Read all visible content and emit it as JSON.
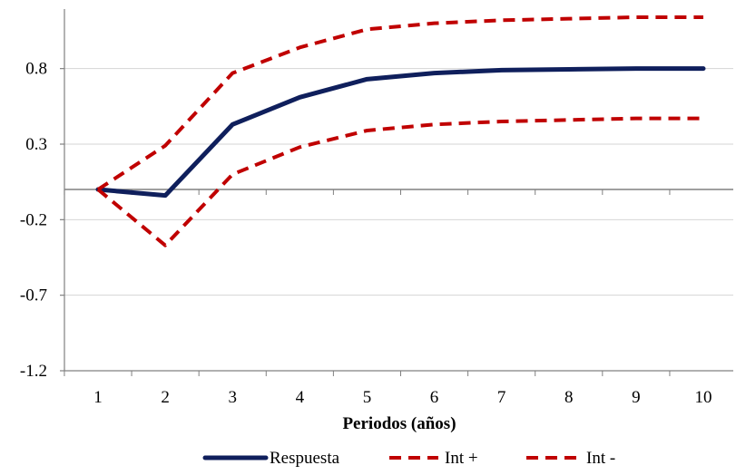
{
  "chart_data": {
    "type": "line",
    "title": "",
    "xlabel": "Periodos (años)",
    "ylabel": "",
    "x": [
      1,
      2,
      3,
      4,
      5,
      6,
      7,
      8,
      9,
      10
    ],
    "x_tick_labels": [
      "1",
      "2",
      "3",
      "4",
      "5",
      "6",
      "7",
      "8",
      "9",
      "10"
    ],
    "ylim": [
      -1.2,
      1.2
    ],
    "y_ticks": [
      0.8,
      0.3,
      -0.2,
      -0.7,
      -1.2
    ],
    "y_tick_labels": [
      "0.8",
      "0.3",
      "-0.2",
      "-0.7",
      "-1.2"
    ],
    "grid": true,
    "legend_position": "bottom",
    "series": [
      {
        "name": "Respuesta",
        "style": "solid",
        "color": "#0f1f5c",
        "values": [
          0.0,
          -0.04,
          0.43,
          0.61,
          0.73,
          0.77,
          0.79,
          0.795,
          0.8,
          0.8
        ]
      },
      {
        "name": "Int +",
        "style": "dashed",
        "color": "#c00000",
        "values": [
          0.0,
          0.29,
          0.77,
          0.94,
          1.06,
          1.1,
          1.12,
          1.13,
          1.14,
          1.14
        ]
      },
      {
        "name": "Int -",
        "style": "dashed",
        "color": "#c00000",
        "values": [
          0.0,
          -0.37,
          0.1,
          0.28,
          0.39,
          0.43,
          0.45,
          0.46,
          0.47,
          0.47
        ]
      }
    ]
  }
}
